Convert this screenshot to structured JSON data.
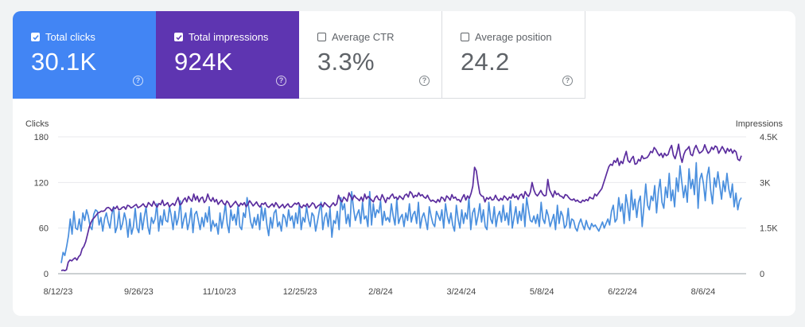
{
  "tiles": [
    {
      "label": "Total clicks",
      "value": "30.1K",
      "selected": true,
      "color": "#4285f4"
    },
    {
      "label": "Total impressions",
      "value": "924K",
      "selected": true,
      "color": "#5e35b1"
    },
    {
      "label": "Average CTR",
      "value": "3.3%",
      "selected": false,
      "color": "#ffffff"
    },
    {
      "label": "Average position",
      "value": "24.2",
      "selected": false,
      "color": "#ffffff"
    }
  ],
  "help_glyph": "?",
  "chart_data": {
    "type": "line",
    "left_axis": {
      "label": "Clicks",
      "ticks": [
        "180",
        "120",
        "60",
        "0"
      ],
      "range": [
        0,
        180
      ]
    },
    "right_axis": {
      "label": "Impressions",
      "ticks": [
        "4.5K",
        "3K",
        "1.5K",
        "0"
      ],
      "range": [
        0,
        4500
      ]
    },
    "x_labels": [
      "8/12/23",
      "9/26/23",
      "11/10/23",
      "12/25/23",
      "2/8/24",
      "3/24/24",
      "5/8/24",
      "6/22/24",
      "8/6/24"
    ],
    "x_label_days": [
      0,
      45,
      90,
      135,
      180,
      225,
      270,
      315,
      360
    ],
    "x_range_days": [
      0,
      384
    ],
    "grid": true,
    "series": [
      {
        "axis": "left",
        "color": "#4a8fde",
        "values": [
          14,
          28,
          24,
          36,
          50,
          72,
          52,
          82,
          60,
          58,
          72,
          56,
          80,
          70,
          84,
          76,
          62,
          58,
          78,
          84,
          82,
          64,
          74,
          56,
          72,
          80,
          68,
          60,
          78,
          88,
          54,
          62,
          82,
          58,
          66,
          80,
          70,
          48,
          72,
          52,
          62,
          86,
          60,
          54,
          80,
          58,
          74,
          88,
          62,
          52,
          74,
          66,
          72,
          92,
          56,
          76,
          64,
          84,
          70,
          68,
          88,
          76,
          58,
          82,
          64,
          74,
          96,
          60,
          72,
          80,
          58,
          68,
          86,
          54,
          78,
          82,
          70,
          58,
          74,
          62,
          80,
          68,
          88,
          56,
          70,
          62,
          66,
          52,
          80,
          60,
          74,
          92,
          66,
          54,
          84,
          70,
          78,
          64,
          90,
          62,
          58,
          80,
          74,
          100,
          86,
          68,
          60,
          74,
          64,
          78,
          58,
          88,
          70,
          86,
          64,
          50,
          74,
          60,
          80,
          84,
          62,
          68,
          56,
          78,
          74,
          62,
          84,
          70,
          76,
          60,
          80,
          66,
          92,
          58,
          74,
          68,
          88,
          72,
          62,
          80,
          76,
          56,
          68,
          82,
          94,
          58,
          74,
          80,
          62,
          86,
          48,
          70,
          66,
          82,
          58,
          100,
          84,
          92,
          66,
          78,
          62,
          108,
          86,
          70,
          78,
          84,
          66,
          94,
          72,
          76,
          62,
          108,
          64,
          92,
          74,
          84,
          80,
          96,
          64,
          82,
          70,
          74,
          68,
          92,
          76,
          64,
          98,
          66,
          74,
          78,
          62,
          80,
          70,
          92,
          68,
          78,
          82,
          66,
          94,
          60,
          74,
          80,
          70,
          58,
          88,
          76,
          66,
          62,
          82,
          76,
          70,
          84,
          60,
          92,
          76,
          66,
          80,
          64,
          56,
          90,
          72,
          60,
          84,
          66,
          80,
          72,
          100,
          58,
          80,
          86,
          64,
          76,
          92,
          68,
          84,
          62,
          58,
          94,
          72,
          66,
          88,
          62,
          76,
          82,
          68,
          90,
          70,
          80,
          64,
          96,
          60,
          74,
          88,
          66,
          82,
          70,
          92,
          62,
          100,
          84,
          70,
          68,
          76,
          66,
          78,
          62,
          94,
          72,
          66,
          84,
          76,
          62,
          70,
          78,
          58,
          90,
          66,
          82,
          76,
          60,
          64,
          86,
          60,
          72,
          70,
          60,
          56,
          66,
          72,
          64,
          58,
          70,
          62,
          58,
          66,
          62,
          64,
          60,
          56,
          62,
          68,
          60,
          66,
          72,
          64,
          82,
          90,
          68,
          72,
          100,
          82,
          92,
          66,
          104,
          90,
          70,
          110,
          84,
          98,
          74,
          94,
          102,
          62,
          88,
          118,
          90,
          84,
          102,
          96,
          116,
          80,
          108,
          124,
          94,
          86,
          114,
          100,
          132,
          96,
          110,
          88,
          126,
          108,
          142,
          120,
          100,
          116,
          94,
          138,
          112,
          124,
          104,
          146,
          86,
          124,
          132,
          118,
          96,
          128,
          140,
          110,
          92,
          126,
          114,
          134,
          116,
          98,
          122,
          108,
          132,
          112,
          100,
          118,
          88,
          106,
          84,
          96,
          100
        ],
        "name": ""
      },
      {
        "axis": "right",
        "color": "#5b2d9e",
        "values": [
          100,
          120,
          100,
          130,
          380,
          450,
          420,
          480,
          520,
          450,
          560,
          620,
          820,
          900,
          1050,
          1280,
          1520,
          1680,
          1790,
          1850,
          1920,
          1990,
          2020,
          2060,
          2050,
          2080,
          2160,
          2180,
          2140,
          2060,
          2180,
          2140,
          2220,
          2100,
          2120,
          2180,
          2200,
          2120,
          2250,
          2230,
          2160,
          2190,
          2240,
          2280,
          2170,
          2200,
          2240,
          2300,
          2210,
          2190,
          2340,
          2280,
          2220,
          2380,
          2260,
          2190,
          2310,
          2270,
          2420,
          2240,
          2280,
          2340,
          2200,
          2260,
          2310,
          2240,
          2380,
          2510,
          2260,
          2300,
          2420,
          2490,
          2360,
          2540,
          2440,
          2380,
          2620,
          2420,
          2550,
          2360,
          2480,
          2520,
          2340,
          2410,
          2620,
          2460,
          2380,
          2500,
          2360,
          2440,
          2280,
          2360,
          2420,
          2310,
          2260,
          2390,
          2320,
          2180,
          2240,
          2310,
          2380,
          2280,
          2220,
          2320,
          2260,
          2340,
          2200,
          2280,
          2400,
          2320,
          2230,
          2290,
          2360,
          2250,
          2190,
          2310,
          2280,
          2340,
          2220,
          2180,
          2240,
          2300,
          2200,
          2340,
          2260,
          2160,
          2220,
          2280,
          2160,
          2240,
          2300,
          2200,
          2190,
          2260,
          2320,
          2280,
          2340,
          2220,
          2170,
          2260,
          2210,
          2300,
          2180,
          2240,
          2330,
          2290,
          2150,
          2220,
          2260,
          2300,
          2200,
          2340,
          2280,
          2220,
          2180,
          2260,
          2330,
          2240,
          2300,
          2580,
          2420,
          2360,
          2520,
          2460,
          2380,
          2660,
          2540,
          2430,
          2580,
          2500,
          2460,
          2400,
          2520,
          2380,
          2620,
          2460,
          2540,
          2480,
          2420,
          2360,
          2500,
          2560,
          2440,
          2420,
          2600,
          2480,
          2340,
          2500,
          2460,
          2560,
          2620,
          2480,
          2520,
          2440,
          2560,
          2500,
          2440,
          2580,
          2620,
          2520,
          2700,
          2640,
          2500,
          2580,
          2540,
          2660,
          2560,
          2600,
          2520,
          2480,
          2580,
          2460,
          2380,
          2420,
          2380,
          2340,
          2440,
          2360,
          2520,
          2480,
          2380,
          2560,
          2500,
          2420,
          2600,
          2480,
          2520,
          2420,
          2440,
          2360,
          2500,
          2600,
          2420,
          2560,
          2480,
          2640,
          2880,
          3500,
          3380,
          2980,
          2640,
          2560,
          2540,
          2360,
          2500,
          2450,
          2520,
          2420,
          2440,
          2580,
          2460,
          2400,
          2480,
          2420,
          2560,
          2500,
          2420,
          2520,
          2480,
          2620,
          2500,
          2560,
          2440,
          2580,
          2620,
          2480,
          2700,
          2600,
          2540,
          2680,
          3000,
          2760,
          2620,
          2560,
          2640,
          2740,
          2620,
          2560,
          2580,
          3100,
          2760,
          2640,
          2520,
          2720,
          2600,
          2640,
          2560,
          2540,
          2480,
          2600,
          2580,
          2500,
          2440,
          2420,
          2460,
          2380,
          2420,
          2360,
          2340,
          2420,
          2380,
          2440,
          2400,
          2520,
          2480,
          2460,
          2620,
          2560,
          2640,
          2720,
          2800,
          2980,
          3160,
          3340,
          3520,
          3600,
          3560,
          3720,
          3660,
          3800,
          3560,
          3700,
          3620,
          3840,
          4020,
          3720,
          3660,
          3780,
          3860,
          3600,
          3620,
          3760,
          3700,
          3880,
          3780,
          3800,
          3820,
          3900,
          4020,
          3980,
          4150,
          4080,
          3960,
          3880,
          3960,
          3820,
          3960,
          3880,
          3920,
          4100,
          4220,
          3900,
          3780,
          3980,
          4260,
          3880,
          3660,
          3920,
          4050,
          4100,
          4180,
          3920,
          3880,
          4100,
          4220,
          4080,
          3960,
          4000,
          4060,
          4240,
          4080,
          3960,
          4020,
          4160,
          4080,
          4200,
          4160,
          3960,
          4060,
          4180,
          4080,
          3960,
          4120,
          4020,
          4100,
          3960,
          4060,
          4000,
          3760,
          3720,
          3880
        ],
        "name": ""
      }
    ]
  }
}
